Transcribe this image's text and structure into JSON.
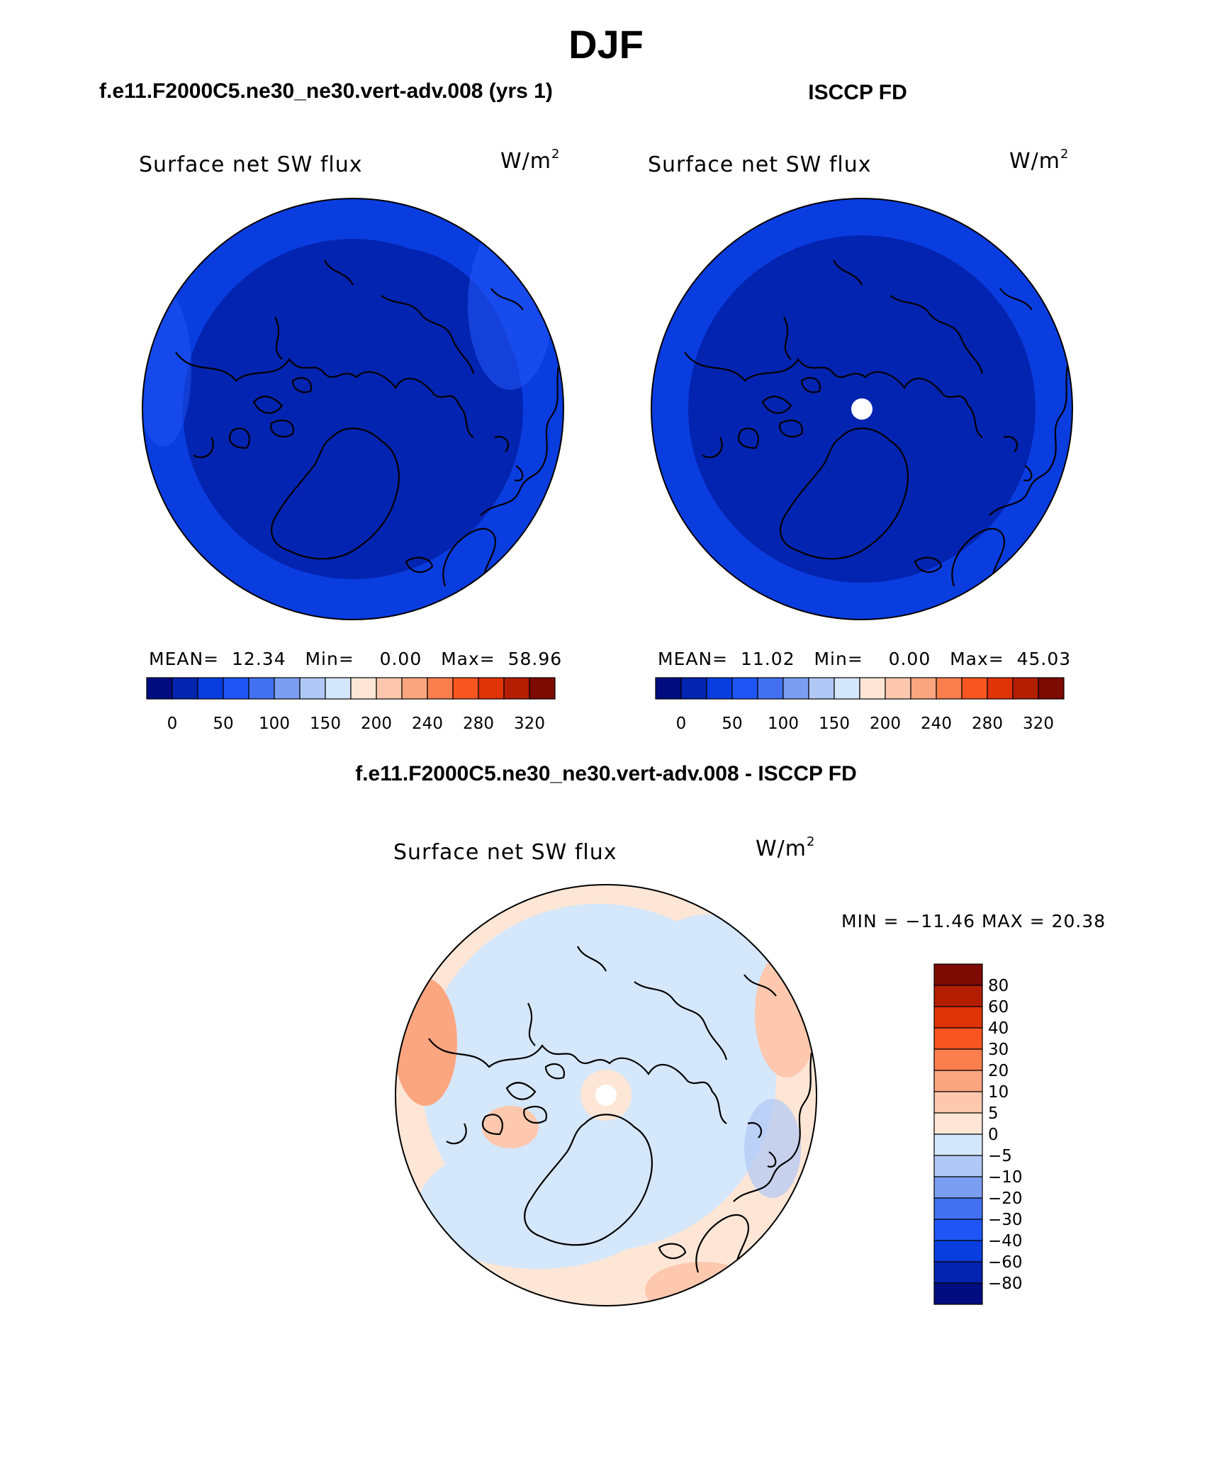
{
  "title": "DJF",
  "panels": [
    {
      "header": "f.e11.F2000C5.ne30_ne30.vert-adv.008 (yrs 1)",
      "variable": "Surface net SW flux",
      "units": "W/m",
      "units_sup": "2",
      "stats": {
        "mean_label": "MEAN=",
        "mean": "12.34",
        "min_label": "Min=",
        "min": "0.00",
        "max_label": "Max=",
        "max": "58.96"
      }
    },
    {
      "header": "ISCCP FD",
      "variable": "Surface net SW flux",
      "units": "W/m",
      "units_sup": "2",
      "stats": {
        "mean_label": "MEAN=",
        "mean": "11.02",
        "min_label": "Min=",
        "min": "0.00",
        "max_label": "Max=",
        "max": "45.03"
      }
    }
  ],
  "colorbar": {
    "colors": [
      "#000d80",
      "#0324b0",
      "#0a3de0",
      "#1f55f5",
      "#4270f0",
      "#7b9ef0",
      "#b0c8f5",
      "#d5e7fb",
      "#fde6d6",
      "#fdc8ae",
      "#fca680",
      "#fb7e4e",
      "#f85520",
      "#e03308",
      "#b31e03",
      "#7d0a03"
    ],
    "labels": [
      "0",
      "50",
      "100",
      "150",
      "200",
      "240",
      "280",
      "320"
    ]
  },
  "difference": {
    "header": "f.e11.F2000C5.ne30_ne30.vert-adv.008 - ISCCP FD",
    "variable": "Surface net SW flux",
    "units": "W/m",
    "units_sup": "2",
    "minmax": "MIN = −11.46  MAX =   20.38",
    "colorbar": {
      "colors": [
        "#7d0a03",
        "#b31e03",
        "#e03308",
        "#f85520",
        "#fb7e4e",
        "#fca680",
        "#fdc8ae",
        "#fde6d6",
        "#d5e7fb",
        "#b0c8f5",
        "#7b9ef0",
        "#4270f0",
        "#1f55f5",
        "#0a3de0",
        "#0324b0",
        "#000d80"
      ],
      "labels": [
        "80",
        "60",
        "40",
        "30",
        "20",
        "10",
        "5",
        "0",
        "−5",
        "−10",
        "−20",
        "−30",
        "−40",
        "−60",
        "−80"
      ]
    }
  }
}
